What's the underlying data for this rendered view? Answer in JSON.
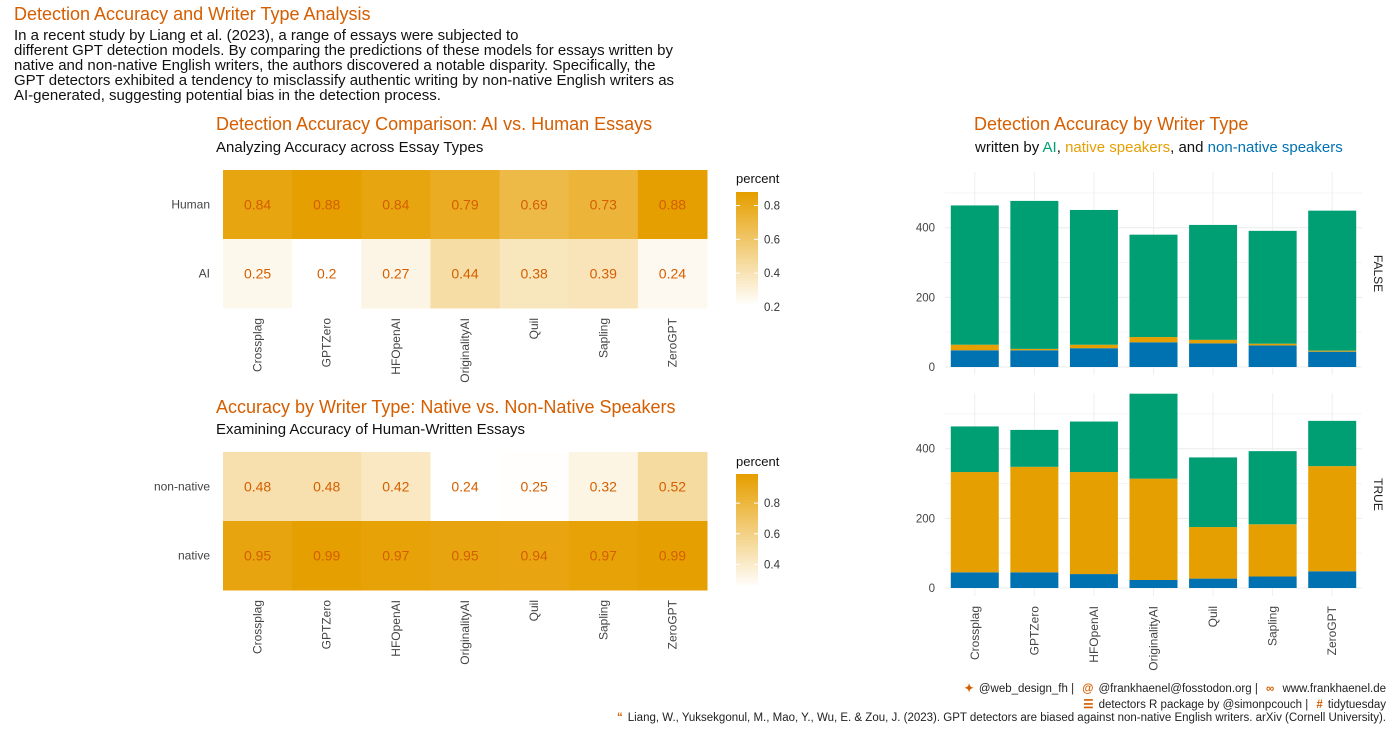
{
  "header": {
    "title": "Detection Accuracy and Writer Type Analysis",
    "intro": [
      "In a recent study by Liang et al. (2023), a range of essays were subjected to",
      "different GPT detection models. By comparing the predictions of these models for essays written by",
      "native and non-native English writers, the authors discovered a notable disparity. Specifically, the",
      "GPT detectors exhibited a tendency to misclassify authentic writing by non-native English writers as",
      "AI-generated, suggesting potential bias in the detection process."
    ]
  },
  "colors": {
    "accent": "#d55e00",
    "ai": "#009e73",
    "native": "#e69f00",
    "non_native": "#0072b2",
    "heat_high": "#e69f00",
    "heat_low": "#ffffff"
  },
  "panel1": {
    "title": "Detection Accuracy Comparison: AI vs. Human Essays",
    "subtitle": "Analyzing Accuracy across Essay Types"
  },
  "panel2": {
    "title": "Accuracy by Writer Type: Native vs. Non-Native Speakers",
    "subtitle": "Examining Accuracy of Human-Written Essays"
  },
  "panel3": {
    "title": "Detection Accuracy by Writer Type",
    "sub_prefix": "written by ",
    "sub_ai": "AI",
    "sub_sep1": ", ",
    "sub_native": "native speakers",
    "sub_sep2": ", and ",
    "sub_non": "non-native speakers"
  },
  "chart_data": [
    {
      "type": "heatmap",
      "title": "Detection Accuracy Comparison: AI vs. Human Essays",
      "x": [
        "Crossplag",
        "GPTZero",
        "HFOpenAI",
        "OriginalityAI",
        "Quil",
        "Sapling",
        "ZeroGPT"
      ],
      "y": [
        "Human",
        "AI"
      ],
      "values": [
        [
          0.84,
          0.88,
          0.84,
          0.79,
          0.69,
          0.73,
          0.88
        ],
        [
          0.25,
          0.2,
          0.27,
          0.44,
          0.38,
          0.39,
          0.24
        ]
      ],
      "labels": [
        [
          "0.84",
          "0.88",
          "0.84",
          "0.79",
          "0.69",
          "0.73",
          "0.88"
        ],
        [
          "0.25",
          "0.2",
          "0.27",
          "0.44",
          "0.38",
          "0.39",
          "0.24"
        ]
      ],
      "legend_title": "percent",
      "legend_ticks": [
        "0.8",
        "0.6",
        "0.4",
        "0.2"
      ],
      "legend_tick_values": [
        0.8,
        0.6,
        0.4,
        0.2
      ],
      "range": [
        0.2,
        0.88
      ]
    },
    {
      "type": "heatmap",
      "title": "Accuracy by Writer Type: Native vs. Non-Native Speakers",
      "x": [
        "Crossplag",
        "GPTZero",
        "HFOpenAI",
        "OriginalityAI",
        "Quil",
        "Sapling",
        "ZeroGPT"
      ],
      "y": [
        "non-native",
        "native"
      ],
      "values": [
        [
          0.48,
          0.48,
          0.42,
          0.24,
          0.25,
          0.32,
          0.52
        ],
        [
          0.95,
          0.99,
          0.97,
          0.95,
          0.94,
          0.97,
          0.99
        ]
      ],
      "labels": [
        [
          "0.48",
          "0.48",
          "0.42",
          "0.24",
          "0.25",
          "0.32",
          "0.52"
        ],
        [
          "0.95",
          "0.99",
          "0.97",
          "0.95",
          "0.94",
          "0.97",
          "0.99"
        ]
      ],
      "legend_title": "percent",
      "legend_ticks": [
        "0.8",
        "0.6",
        "0.4"
      ],
      "legend_tick_values": [
        0.8,
        0.6,
        0.4
      ],
      "range": [
        0.24,
        0.99
      ]
    },
    {
      "type": "bar",
      "stacked": true,
      "title": "Detection Accuracy by Writer Type",
      "categories": [
        "Crossplag",
        "GPTZero",
        "HFOpenAI",
        "OriginalityAI",
        "Quil",
        "Sapling",
        "ZeroGPT"
      ],
      "facets": [
        {
          "label": "FALSE",
          "series": [
            {
              "name": "non-native speakers",
              "values": [
                48,
                48,
                54,
                71,
                68,
                62,
                44
              ]
            },
            {
              "name": "native speakers",
              "values": [
                16,
                4,
                10,
                15,
                10,
                5,
                3
              ]
            },
            {
              "name": "AI",
              "values": [
                400,
                425,
                387,
                294,
                330,
                324,
                402
              ]
            }
          ]
        },
        {
          "label": "TRUE",
          "series": [
            {
              "name": "non-native speakers",
              "values": [
                45,
                45,
                40,
                23,
                27,
                33,
                48
              ]
            },
            {
              "name": "native speakers",
              "values": [
                288,
                303,
                293,
                291,
                148,
                150,
                302
              ]
            },
            {
              "name": "AI",
              "values": [
                131,
                106,
                145,
                244,
                200,
                210,
                130
              ]
            }
          ]
        }
      ],
      "ylim": [
        0,
        560
      ],
      "yticks": [
        "0",
        "200",
        "400"
      ],
      "ytick_values": [
        0,
        200,
        400
      ]
    }
  ],
  "footer": {
    "line1": [
      "@web_design_fh",
      "@frankhaenel@fosstodon.org",
      "www.frankhaenel.de"
    ],
    "line2": [
      "detectors R package by @simonpcouch",
      "tidytuesday"
    ],
    "line3": "Liang, W., Yuksekgonul, M., Mao, Y., Wu, E. & Zou, J. (2023). GPT detectors are biased against non-native English writers. arXiv (Cornell University)."
  }
}
